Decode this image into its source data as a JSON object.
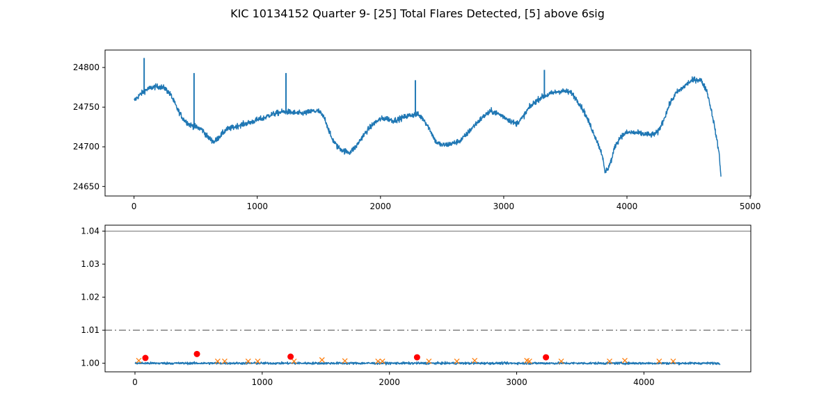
{
  "figure": {
    "title": "KIC 10134152 Quarter 9- [25] Total Flares Detected, [5] above 6sig"
  },
  "colors": {
    "line": "#1f77b4",
    "flare_marker": "#ff7f0e",
    "strong_flare_marker": "#ff0000",
    "top_hline": "#808080",
    "dashdot_hline": "#808080",
    "axes": "#000000"
  },
  "chart_data": [
    {
      "type": "line",
      "title": "",
      "xlabel": "",
      "ylabel": "",
      "xlim": [
        -235,
        5005
      ],
      "ylim": [
        24638,
        24822
      ],
      "x_ticks": [
        0,
        1000,
        2000,
        3000,
        4000,
        5000
      ],
      "y_ticks": [
        24650,
        24700,
        24750,
        24800
      ],
      "trend": {
        "x": [
          0,
          50,
          100,
          150,
          200,
          250,
          300,
          350,
          400,
          450,
          500,
          550,
          600,
          650,
          700,
          750,
          800,
          850,
          900,
          950,
          1000,
          1050,
          1100,
          1150,
          1200,
          1250,
          1300,
          1350,
          1400,
          1450,
          1500,
          1550,
          1600,
          1650,
          1700,
          1750,
          1800,
          1850,
          1900,
          1950,
          2000,
          2050,
          2100,
          2150,
          2200,
          2250,
          2300,
          2350,
          2400,
          2450,
          2500,
          2550,
          2600,
          2650,
          2700,
          2750,
          2800,
          2850,
          2900,
          2950,
          3000,
          3050,
          3100,
          3150,
          3200,
          3250,
          3300,
          3350,
          3400,
          3450,
          3500,
          3550,
          3600,
          3650,
          3700,
          3750,
          3800,
          3820,
          3850,
          3880,
          3900,
          3950,
          4000,
          4050,
          4100,
          4150,
          4200,
          4250,
          4300,
          4350,
          4400,
          4450,
          4500,
          4550,
          4600,
          4650,
          4700,
          4750,
          4765
        ],
        "y": [
          24758,
          24766,
          24772,
          24775,
          24776,
          24774,
          24765,
          24748,
          24735,
          24728,
          24725,
          24722,
          24712,
          24706,
          24714,
          24722,
          24724,
          24727,
          24729,
          24731,
          24734,
          24736,
          24740,
          24742,
          24744,
          24744,
          24743,
          24742,
          24743,
          24745,
          24745,
          24735,
          24712,
          24700,
          24695,
          24693,
          24700,
          24712,
          24722,
          24730,
          24735,
          24736,
          24733,
          24735,
          24738,
          24740,
          24741,
          24735,
          24722,
          24706,
          24702,
          24703,
          24705,
          24708,
          24716,
          24725,
          24733,
          24740,
          24745,
          24742,
          24738,
          24733,
          24729,
          24736,
          24748,
          24756,
          24762,
          24765,
          24768,
          24770,
          24770,
          24768,
          24758,
          24745,
          24728,
          24710,
          24690,
          24668,
          24674,
          24686,
          24700,
          24713,
          24718,
          24718,
          24717,
          24716,
          24715,
          24718,
          24735,
          24755,
          24768,
          24774,
          24781,
          24785,
          24784,
          24770,
          24735,
          24690,
          24655
        ],
        "noise_amplitude": 6
      },
      "spikes": [
        {
          "x": 82,
          "y": 24812
        },
        {
          "x": 487,
          "y": 24793
        },
        {
          "x": 1233,
          "y": 24793
        },
        {
          "x": 2283,
          "y": 24784
        },
        {
          "x": 3330,
          "y": 24797
        }
      ]
    },
    {
      "type": "line",
      "title": "",
      "xlabel": "",
      "ylabel": "",
      "xlim": [
        -235,
        4840
      ],
      "ylim": [
        0.9974,
        1.0418
      ],
      "x_ticks": [
        0,
        1000,
        2000,
        3000,
        4000
      ],
      "y_ticks": [
        1.0,
        1.01,
        1.02,
        1.03,
        1.04
      ],
      "y_tick_labels": [
        "1.00",
        "1.01",
        "1.02",
        "1.03",
        "1.04"
      ],
      "series_x_range": [
        0,
        4600
      ],
      "baseline": 1.0,
      "noise_amplitude": 0.0006,
      "hlines": [
        {
          "y": 1.04,
          "style": "solid"
        },
        {
          "y": 1.01,
          "style": "dashdot"
        }
      ],
      "flares": {
        "x": [
          30,
          650,
          705,
          890,
          965,
          1250,
          1470,
          1650,
          1910,
          1945,
          2310,
          2530,
          2670,
          3080,
          3100,
          3350,
          3730,
          3850,
          4120,
          4230
        ],
        "y": [
          1.0008,
          1.0006,
          1.0006,
          1.0006,
          1.0006,
          1.0006,
          1.001,
          1.0007,
          1.0006,
          1.0006,
          1.0006,
          1.0006,
          1.0008,
          1.0008,
          1.0006,
          1.0006,
          1.0006,
          1.0008,
          1.0006,
          1.0006
        ]
      },
      "strong_flares": {
        "x": [
          82,
          487,
          1223,
          2217,
          3230
        ],
        "y": [
          1.0016,
          1.0028,
          1.002,
          1.0018,
          1.0018
        ]
      }
    }
  ]
}
